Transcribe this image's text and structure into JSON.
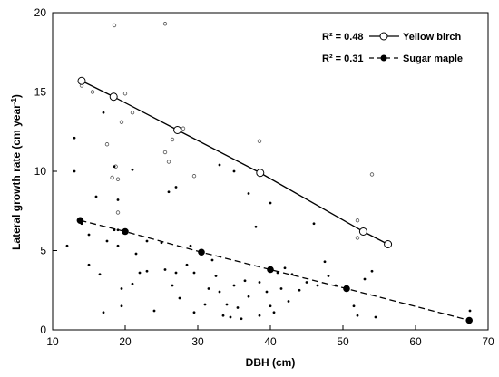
{
  "chart_data": {
    "type": "scatter",
    "xlabel": "DBH (cm)",
    "ylabel_main": "Lateral growth rate (cm year",
    "ylabel_sup": "-1",
    "ylabel_close": ")",
    "xlim": [
      10,
      70
    ],
    "ylim": [
      0,
      20
    ],
    "x_ticks": [
      10,
      20,
      30,
      40,
      50,
      60,
      70
    ],
    "y_ticks": [
      0,
      5,
      10,
      15,
      20
    ],
    "grid": false,
    "legend_position": "top-right",
    "series": [
      {
        "name": "Yellow birch",
        "r2_text": "R² = 0.48",
        "color": "#000000",
        "line_style": "solid",
        "marker": "open-circle",
        "scatter": [
          [
            14.0,
            15.4
          ],
          [
            15.5,
            15.0
          ],
          [
            18.5,
            19.2
          ],
          [
            17.5,
            11.7
          ],
          [
            18.2,
            9.6
          ],
          [
            18.7,
            10.3
          ],
          [
            19.0,
            9.5
          ],
          [
            19.0,
            7.4
          ],
          [
            19.5,
            13.1
          ],
          [
            20.0,
            14.9
          ],
          [
            21.0,
            13.7
          ],
          [
            25.5,
            19.3
          ],
          [
            25.5,
            11.2
          ],
          [
            26.0,
            10.6
          ],
          [
            26.5,
            12.0
          ],
          [
            28.0,
            12.7
          ],
          [
            29.5,
            9.7
          ],
          [
            38.5,
            11.9
          ],
          [
            52.0,
            6.9
          ],
          [
            52.0,
            5.8
          ],
          [
            54.0,
            9.8
          ]
        ],
        "trend_points": [
          [
            14.0,
            15.7
          ],
          [
            18.4,
            14.7
          ],
          [
            27.2,
            12.6
          ],
          [
            38.6,
            9.9
          ],
          [
            52.8,
            6.2
          ],
          [
            56.2,
            5.4
          ]
        ]
      },
      {
        "name": "Sugar maple",
        "r2_text": "R² = 0.31",
        "color": "#000000",
        "line_style": "dashed",
        "marker": "filled-circle",
        "scatter": [
          [
            12.0,
            5.3
          ],
          [
            13.0,
            12.1
          ],
          [
            13.0,
            10.0
          ],
          [
            14.0,
            6.7
          ],
          [
            15.0,
            6.0
          ],
          [
            15.0,
            4.1
          ],
          [
            16.0,
            8.4
          ],
          [
            16.5,
            3.5
          ],
          [
            17.0,
            1.1
          ],
          [
            17.0,
            13.7
          ],
          [
            17.5,
            5.6
          ],
          [
            18.5,
            6.3
          ],
          [
            18.5,
            10.3
          ],
          [
            19.0,
            8.2
          ],
          [
            19.0,
            6.3
          ],
          [
            19.0,
            5.3
          ],
          [
            19.5,
            2.6
          ],
          [
            19.5,
            1.5
          ],
          [
            21.0,
            10.1
          ],
          [
            21.0,
            2.9
          ],
          [
            21.5,
            4.8
          ],
          [
            22.0,
            3.6
          ],
          [
            23.0,
            5.6
          ],
          [
            23.0,
            3.7
          ],
          [
            24.0,
            1.2
          ],
          [
            25.0,
            5.5
          ],
          [
            25.5,
            3.8
          ],
          [
            26.0,
            8.7
          ],
          [
            26.5,
            2.8
          ],
          [
            27.0,
            9.0
          ],
          [
            27.0,
            3.6
          ],
          [
            27.5,
            2.0
          ],
          [
            28.5,
            4.1
          ],
          [
            29.0,
            5.3
          ],
          [
            29.5,
            3.6
          ],
          [
            29.5,
            1.1
          ],
          [
            30.5,
            5.0
          ],
          [
            31.0,
            1.6
          ],
          [
            31.5,
            2.6
          ],
          [
            32.0,
            4.4
          ],
          [
            32.5,
            3.4
          ],
          [
            33.0,
            10.4
          ],
          [
            33.0,
            2.4
          ],
          [
            33.5,
            0.9
          ],
          [
            34.0,
            1.6
          ],
          [
            34.5,
            0.8
          ],
          [
            35.0,
            10.0
          ],
          [
            35.0,
            2.8
          ],
          [
            35.5,
            1.4
          ],
          [
            36.0,
            0.7
          ],
          [
            36.5,
            3.1
          ],
          [
            37.0,
            8.6
          ],
          [
            37.0,
            2.1
          ],
          [
            38.0,
            6.5
          ],
          [
            38.5,
            3.0
          ],
          [
            38.5,
            0.9
          ],
          [
            39.5,
            2.4
          ],
          [
            40.0,
            8.0
          ],
          [
            40.0,
            1.5
          ],
          [
            40.5,
            1.1
          ],
          [
            41.0,
            3.6
          ],
          [
            41.5,
            2.6
          ],
          [
            42.0,
            3.9
          ],
          [
            42.5,
            1.8
          ],
          [
            43.0,
            3.5
          ],
          [
            44.0,
            2.5
          ],
          [
            45.0,
            3.0
          ],
          [
            46.0,
            6.7
          ],
          [
            46.5,
            2.8
          ],
          [
            47.5,
            4.3
          ],
          [
            48.0,
            3.4
          ],
          [
            49.0,
            2.8
          ],
          [
            51.5,
            1.5
          ],
          [
            52.0,
            0.9
          ],
          [
            53.0,
            3.2
          ],
          [
            54.0,
            3.7
          ],
          [
            54.5,
            0.8
          ],
          [
            67.5,
            1.2
          ]
        ],
        "trend_points": [
          [
            13.8,
            6.9
          ],
          [
            20.0,
            6.2
          ],
          [
            30.5,
            4.9
          ],
          [
            40.0,
            3.8
          ],
          [
            50.5,
            2.6
          ],
          [
            67.4,
            0.6
          ]
        ]
      }
    ]
  }
}
